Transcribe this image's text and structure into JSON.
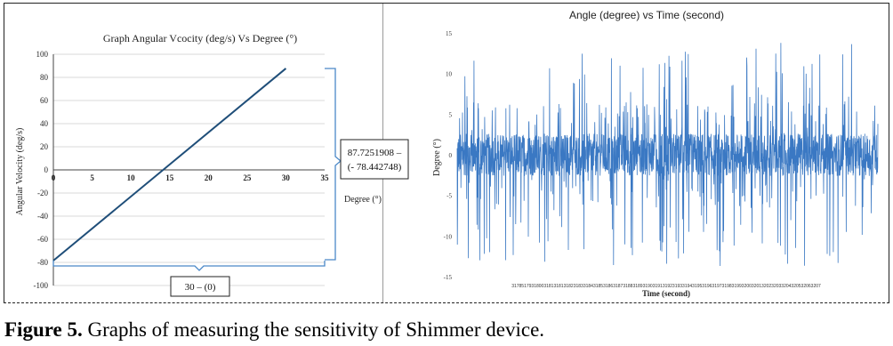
{
  "caption": {
    "label": "Figure 5.",
    "text": "Graphs of measuring the sensitivity of Shimmer device."
  },
  "colors": {
    "line": "#1f4e79",
    "noise": "#3a78c3",
    "axis": "#444444",
    "grid": "#d9d9d9",
    "bracket": "#4a88c8"
  },
  "chart_data": [
    {
      "type": "line",
      "title": "Graph Angular Vcocity (deg/s) Vs Degree (°)",
      "xlabel": "Degree (°)",
      "ylabel": "Angular Velocity (deg/s)",
      "xlim": [
        0,
        35
      ],
      "ylim": [
        -100,
        100
      ],
      "x_ticks": [
        0,
        5,
        10,
        15,
        20,
        25,
        30,
        35
      ],
      "y_ticks": [
        100,
        80,
        60,
        40,
        20,
        0,
        -20,
        -40,
        -60,
        -80,
        -100
      ],
      "grid": true,
      "series": [
        {
          "x": [
            0,
            30
          ],
          "y": [
            -78.442748,
            87.7251908
          ]
        }
      ],
      "annotations": {
        "rise_top": "87.7251908 –",
        "rise_bottom": "(- 78.442748)",
        "run": "30 – (0)"
      }
    },
    {
      "type": "line",
      "title": "Angle (degree) vs Time (second)",
      "xlabel": "Time (second)",
      "ylabel": "Degree (°)",
      "ylim": [
        -15,
        15
      ],
      "y_ticks": [
        15,
        10,
        5,
        0,
        -5,
        -10,
        -15
      ],
      "x_tick_text": "31785179318003181318131823183318431853186318731883189319031913192319331943195319631973198319932003201320232033204320532063207",
      "grid": false,
      "series": [
        {
          "name": "",
          "description_range": [
            -14.3,
            14.0
          ]
        }
      ]
    }
  ]
}
